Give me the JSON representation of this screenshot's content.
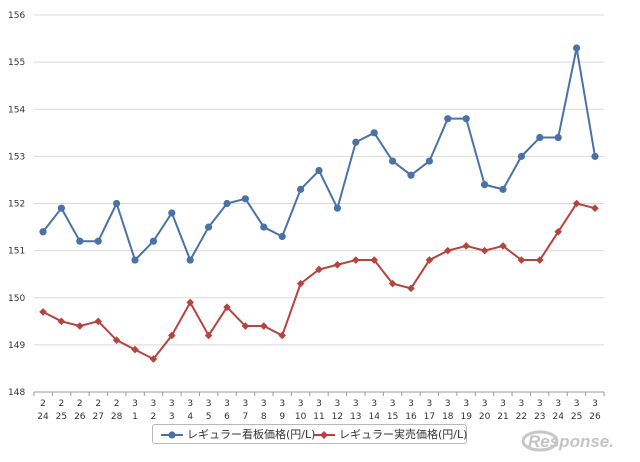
{
  "chart_data": {
    "type": "line",
    "ylim": [
      148,
      156
    ],
    "y_ticks": [
      "148",
      "149",
      "150",
      "151",
      "152",
      "153",
      "154",
      "155",
      "156"
    ],
    "categories": [
      [
        "2",
        "24"
      ],
      [
        "2",
        "25"
      ],
      [
        "2",
        "26"
      ],
      [
        "2",
        "27"
      ],
      [
        "2",
        "28"
      ],
      [
        "3",
        "1"
      ],
      [
        "3",
        "2"
      ],
      [
        "3",
        "3"
      ],
      [
        "3",
        "4"
      ],
      [
        "3",
        "5"
      ],
      [
        "3",
        "6"
      ],
      [
        "3",
        "7"
      ],
      [
        "3",
        "8"
      ],
      [
        "3",
        "9"
      ],
      [
        "3",
        "10"
      ],
      [
        "3",
        "11"
      ],
      [
        "3",
        "12"
      ],
      [
        "3",
        "13"
      ],
      [
        "3",
        "14"
      ],
      [
        "3",
        "15"
      ],
      [
        "3",
        "16"
      ],
      [
        "3",
        "17"
      ],
      [
        "3",
        "18"
      ],
      [
        "3",
        "19"
      ],
      [
        "3",
        "20"
      ],
      [
        "3",
        "21"
      ],
      [
        "3",
        "22"
      ],
      [
        "3",
        "23"
      ],
      [
        "3",
        "24"
      ],
      [
        "3",
        "25"
      ],
      [
        "3",
        "26"
      ]
    ],
    "grid": "horizontal",
    "legend_position": "bottom",
    "series": [
      {
        "name": "レギュラー看板価格(円/L)",
        "color": "#4a72a8",
        "marker": "circle",
        "values": [
          151.4,
          151.9,
          151.2,
          151.2,
          152.0,
          150.8,
          151.2,
          151.8,
          150.8,
          151.5,
          152.0,
          152.1,
          151.5,
          151.3,
          152.3,
          152.7,
          151.9,
          153.3,
          153.5,
          152.9,
          152.6,
          152.9,
          153.8,
          153.8,
          152.4,
          152.3,
          153.0,
          153.4,
          153.4,
          155.3,
          153.0
        ]
      },
      {
        "name": "レギュラー実売価格(円/L)",
        "color": "#b5443f",
        "marker": "diamond",
        "values": [
          149.7,
          149.5,
          149.4,
          149.5,
          149.1,
          148.9,
          148.7,
          149.2,
          149.9,
          149.2,
          149.8,
          149.4,
          149.4,
          149.2,
          150.3,
          150.6,
          150.7,
          150.8,
          150.8,
          150.3,
          150.2,
          150.8,
          151.0,
          151.1,
          151.0,
          151.1,
          150.8,
          150.8,
          151.4,
          152.0,
          151.9
        ]
      }
    ]
  },
  "legend": {
    "item1": "レギュラー看板価格(円/L)",
    "item2": "レギュラー実売価格(円/L)"
  },
  "watermark": {
    "brand": "Response."
  }
}
